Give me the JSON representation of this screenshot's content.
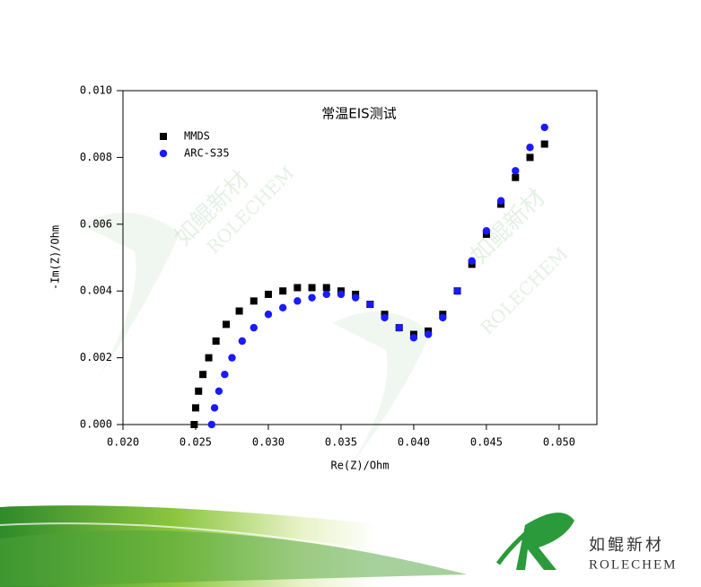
{
  "chart_data": {
    "type": "scatter",
    "title": "常温EIS测试",
    "x_label": "Re(Z)/Ohm",
    "y_label": "-Im(Z)/Ohm",
    "xlim": [
      0.02,
      0.0526
    ],
    "ylim": [
      0,
      0.01
    ],
    "xticks": [
      {
        "value": 0.02,
        "label": "0.020"
      },
      {
        "value": 0.025,
        "label": "0.025"
      },
      {
        "value": 0.03,
        "label": "0.030"
      },
      {
        "value": 0.035,
        "label": "0.035"
      },
      {
        "value": 0.04,
        "label": "0.040"
      },
      {
        "value": 0.045,
        "label": "0.045"
      },
      {
        "value": 0.05,
        "label": "0.050"
      }
    ],
    "yticks": [
      {
        "value": 0,
        "label": "0.000"
      },
      {
        "value": 0.002,
        "label": "0.002"
      },
      {
        "value": 0.004,
        "label": "0.004"
      },
      {
        "value": 0.006,
        "label": "0.006"
      },
      {
        "value": 0.008,
        "label": "0.008"
      },
      {
        "value": 0.01,
        "label": "0.010"
      }
    ],
    "legend": "upper left",
    "series": [
      {
        "name": "MMDS",
        "color": "#000000",
        "marker": "square",
        "x": [
          0.0249,
          0.025,
          0.0252,
          0.0255,
          0.0259,
          0.0264,
          0.0271,
          0.028,
          0.029,
          0.03,
          0.031,
          0.032,
          0.033,
          0.034,
          0.035,
          0.036,
          0.037,
          0.038,
          0.039,
          0.04,
          0.041,
          0.042,
          0.043,
          0.044,
          0.045,
          0.046,
          0.047,
          0.048,
          0.049
        ],
        "values": [
          0,
          0.0005,
          0.001,
          0.0015,
          0.002,
          0.0025,
          0.003,
          0.0034,
          0.0037,
          0.0039,
          0.004,
          0.0041,
          0.0041,
          0.0041,
          0.004,
          0.0039,
          0.0036,
          0.0033,
          0.0029,
          0.0027,
          0.0028,
          0.0033,
          0.004,
          0.0048,
          0.0057,
          0.0066,
          0.0074,
          0.008,
          0.0084
        ]
      },
      {
        "name": "ARC-S35",
        "color": "#1a1aff",
        "marker": "circle",
        "x": [
          0.0261,
          0.0263,
          0.0266,
          0.027,
          0.0275,
          0.0282,
          0.029,
          0.03,
          0.031,
          0.032,
          0.033,
          0.034,
          0.035,
          0.036,
          0.037,
          0.038,
          0.039,
          0.04,
          0.041,
          0.042,
          0.043,
          0.044,
          0.045,
          0.046,
          0.047,
          0.048,
          0.049
        ],
        "values": [
          0,
          0.0005,
          0.001,
          0.0015,
          0.002,
          0.0025,
          0.0029,
          0.0033,
          0.0035,
          0.0037,
          0.0038,
          0.0039,
          0.0039,
          0.0038,
          0.0036,
          0.0032,
          0.0029,
          0.0026,
          0.0027,
          0.0032,
          0.004,
          0.0049,
          0.0058,
          0.0067,
          0.0076,
          0.0083,
          0.0089
        ]
      }
    ]
  },
  "logo": {
    "name_cn": "如鲲新材",
    "name_en": "ROLECHEM"
  }
}
